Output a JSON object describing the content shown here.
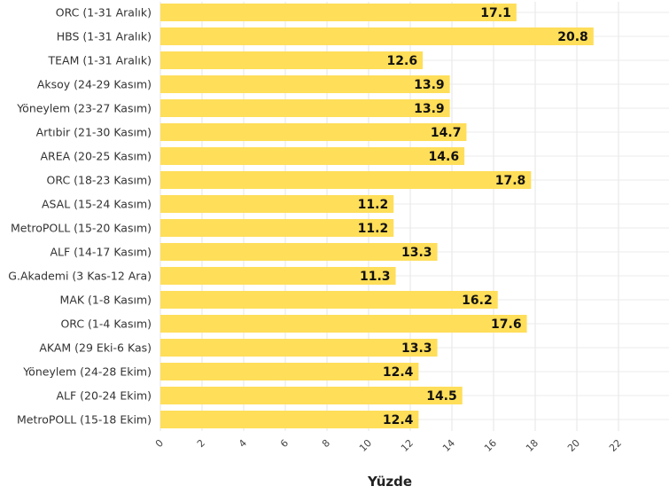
{
  "chart_data": {
    "type": "bar",
    "orientation": "horizontal",
    "categories": [
      "ORC (1-31 Aralık)",
      "HBS  (1-31 Aralık)",
      "TEAM (1-31 Aralık)",
      "Aksoy (24-29 Kasım)",
      "Yöneylem (23-27 Kasım)",
      "Artıbir (21-30 Kasım)",
      "AREA (20-25 Kasım)",
      "ORC (18-23 Kasım)",
      "ASAL (15-24 Kasım)",
      "MetroPOLL (15-20 Kasım)",
      "ALF (14-17 Kasım)",
      "G.Akademi (3 Kas-12 Ara)",
      "MAK (1-8 Kasım)",
      "ORC (1-4 Kasım)",
      "AKAM (29 Eki-6 Kas)",
      "Yöneylem (24-28 Ekim)",
      "ALF (20-24 Ekim)",
      "MetroPOLL (15-18 Ekim)"
    ],
    "values": [
      17.1,
      20.8,
      12.6,
      13.9,
      13.9,
      14.7,
      14.6,
      17.8,
      11.2,
      11.2,
      13.3,
      11.3,
      16.2,
      17.6,
      13.3,
      12.4,
      14.5,
      12.4
    ],
    "value_labels": [
      "17.1",
      "20.8",
      "12.6",
      "13.9",
      "13.9",
      "14.7",
      "14.6",
      "17.8",
      "11.2",
      "11.2",
      "13.3",
      "11.3",
      "16.2",
      "17.6",
      "13.3",
      "12.4",
      "14.5",
      "12.4"
    ],
    "xlabel": "Yüzde",
    "ylabel": "",
    "xlim": [
      0,
      22
    ],
    "xticks": [
      "0",
      "2",
      "4",
      "6",
      "8",
      "10",
      "12",
      "14",
      "16",
      "18",
      "20",
      "22"
    ],
    "bar_color": "#FFDE59",
    "grid": true,
    "legend": "none"
  }
}
